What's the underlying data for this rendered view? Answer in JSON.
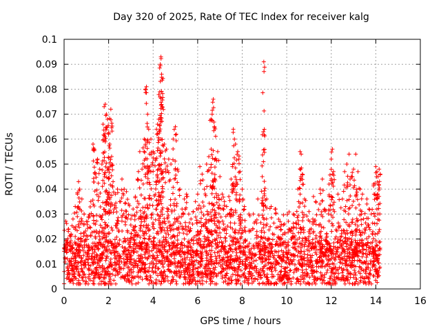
{
  "chart_data": {
    "type": "scatter",
    "title": "Day 320 of 2025, Rate Of TEC Index for receiver kalg",
    "xlabel": "GPS time / hours",
    "ylabel": "ROTI / TECUs",
    "xlim": [
      0,
      16
    ],
    "ylim": [
      0,
      0.1
    ],
    "xticks": [
      "0",
      "2",
      "4",
      "6",
      "8",
      "10",
      "12",
      "14",
      "16"
    ],
    "yticks": [
      "0",
      "0.01",
      "0.02",
      "0.03",
      "0.04",
      "0.05",
      "0.06",
      "0.07",
      "0.08",
      "0.09",
      "0.1"
    ],
    "grid": true,
    "marker": "+",
    "color": "#ff0000",
    "series": [
      {
        "name": "ROTI",
        "points": [
          [
            0.05,
            0.012
          ],
          [
            0.1,
            0.018
          ],
          [
            0.2,
            0.024
          ],
          [
            0.3,
            0.021
          ],
          [
            0.4,
            0.028
          ],
          [
            0.5,
            0.033
          ],
          [
            0.6,
            0.038
          ],
          [
            0.65,
            0.043
          ],
          [
            0.7,
            0.04
          ],
          [
            0.8,
            0.036
          ],
          [
            0.9,
            0.03
          ],
          [
            1.0,
            0.027
          ],
          [
            1.1,
            0.029
          ],
          [
            1.2,
            0.035
          ],
          [
            1.3,
            0.058
          ],
          [
            1.35,
            0.056
          ],
          [
            1.4,
            0.046
          ],
          [
            1.5,
            0.052
          ],
          [
            1.6,
            0.048
          ],
          [
            1.7,
            0.05
          ],
          [
            1.75,
            0.066
          ],
          [
            1.8,
            0.073
          ],
          [
            1.85,
            0.074
          ],
          [
            1.9,
            0.07
          ],
          [
            1.95,
            0.068
          ],
          [
            2.0,
            0.062
          ],
          [
            2.05,
            0.058
          ],
          [
            2.1,
            0.072
          ],
          [
            2.15,
            0.05
          ],
          [
            2.2,
            0.043
          ],
          [
            2.3,
            0.038
          ],
          [
            2.4,
            0.04
          ],
          [
            2.5,
            0.035
          ],
          [
            2.6,
            0.044
          ],
          [
            2.7,
            0.04
          ],
          [
            2.8,
            0.039
          ],
          [
            2.9,
            0.034
          ],
          [
            3.0,
            0.028
          ],
          [
            3.1,
            0.032
          ],
          [
            3.2,
            0.037
          ],
          [
            3.3,
            0.044
          ],
          [
            3.4,
            0.055
          ],
          [
            3.5,
            0.048
          ],
          [
            3.6,
            0.06
          ],
          [
            3.65,
            0.08
          ],
          [
            3.7,
            0.081
          ],
          [
            3.75,
            0.07
          ],
          [
            3.8,
            0.064
          ],
          [
            3.9,
            0.06
          ],
          [
            4.0,
            0.055
          ],
          [
            4.1,
            0.052
          ],
          [
            4.15,
            0.064
          ],
          [
            4.2,
            0.066
          ],
          [
            4.25,
            0.068
          ],
          [
            4.3,
            0.079
          ],
          [
            4.32,
            0.09
          ],
          [
            4.35,
            0.093
          ],
          [
            4.38,
            0.086
          ],
          [
            4.4,
            0.073
          ],
          [
            4.5,
            0.058
          ],
          [
            4.6,
            0.056
          ],
          [
            4.7,
            0.052
          ],
          [
            4.8,
            0.05
          ],
          [
            4.9,
            0.06
          ],
          [
            5.0,
            0.065
          ],
          [
            5.1,
            0.048
          ],
          [
            5.2,
            0.04
          ],
          [
            5.3,
            0.032
          ],
          [
            5.4,
            0.036
          ],
          [
            5.5,
            0.038
          ],
          [
            5.6,
            0.03
          ],
          [
            5.7,
            0.028
          ],
          [
            5.8,
            0.031
          ],
          [
            5.9,
            0.035
          ],
          [
            6.0,
            0.038
          ],
          [
            6.1,
            0.049
          ],
          [
            6.2,
            0.046
          ],
          [
            6.3,
            0.04
          ],
          [
            6.4,
            0.05
          ],
          [
            6.5,
            0.053
          ],
          [
            6.6,
            0.068
          ],
          [
            6.65,
            0.07
          ],
          [
            6.7,
            0.076
          ],
          [
            6.75,
            0.065
          ],
          [
            6.8,
            0.052
          ],
          [
            6.9,
            0.055
          ],
          [
            7.0,
            0.045
          ],
          [
            7.1,
            0.038
          ],
          [
            7.2,
            0.035
          ],
          [
            7.3,
            0.033
          ],
          [
            7.4,
            0.037
          ],
          [
            7.5,
            0.044
          ],
          [
            7.6,
            0.064
          ],
          [
            7.65,
            0.06
          ],
          [
            7.7,
            0.058
          ],
          [
            7.8,
            0.055
          ],
          [
            7.85,
            0.052
          ],
          [
            7.9,
            0.047
          ],
          [
            8.0,
            0.04
          ],
          [
            8.1,
            0.033
          ],
          [
            8.3,
            0.03
          ],
          [
            8.5,
            0.03
          ],
          [
            8.7,
            0.036
          ],
          [
            8.9,
            0.045
          ],
          [
            8.95,
            0.063
          ],
          [
            8.97,
            0.091
          ],
          [
            9.1,
            0.036
          ],
          [
            9.3,
            0.033
          ],
          [
            9.5,
            0.032
          ],
          [
            9.7,
            0.027
          ],
          [
            9.9,
            0.026
          ],
          [
            10.1,
            0.024
          ],
          [
            10.3,
            0.03
          ],
          [
            10.5,
            0.04
          ],
          [
            10.6,
            0.055
          ],
          [
            10.65,
            0.054
          ],
          [
            10.7,
            0.046
          ],
          [
            10.8,
            0.036
          ],
          [
            11.0,
            0.031
          ],
          [
            11.2,
            0.037
          ],
          [
            11.3,
            0.035
          ],
          [
            11.5,
            0.04
          ],
          [
            11.6,
            0.044
          ],
          [
            11.7,
            0.032
          ],
          [
            11.9,
            0.042
          ],
          [
            12.0,
            0.052
          ],
          [
            12.05,
            0.056
          ],
          [
            12.1,
            0.047
          ],
          [
            12.3,
            0.038
          ],
          [
            12.5,
            0.036
          ],
          [
            12.6,
            0.047
          ],
          [
            12.7,
            0.05
          ],
          [
            12.8,
            0.054
          ],
          [
            12.9,
            0.045
          ],
          [
            13.0,
            0.048
          ],
          [
            13.1,
            0.054
          ],
          [
            13.2,
            0.047
          ],
          [
            13.3,
            0.04
          ],
          [
            13.4,
            0.038
          ],
          [
            13.6,
            0.036
          ],
          [
            13.7,
            0.032
          ],
          [
            13.8,
            0.03
          ],
          [
            13.9,
            0.042
          ],
          [
            14.0,
            0.049
          ],
          [
            14.05,
            0.047
          ],
          [
            14.1,
            0.045
          ],
          [
            14.15,
            0.048
          ],
          [
            14.2,
            0.046
          ]
        ]
      }
    ],
    "dense_band": {
      "x_range": [
        0,
        14.2
      ],
      "y_floor": 0.002,
      "y_core": [
        0.004,
        0.022
      ]
    }
  }
}
